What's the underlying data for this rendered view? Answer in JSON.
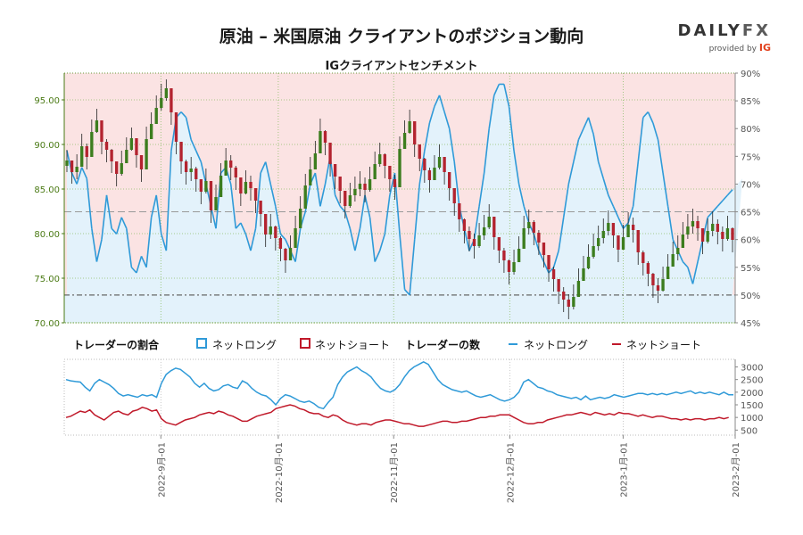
{
  "header": {
    "title": "原油 – 米国原油 クライアントのポジション動向",
    "subtitle": "IGクライアントセンチメント",
    "logo_word": "DAILY",
    "logo_word_fx": "FX",
    "logo_provided": "provided by",
    "logo_ig": "IG"
  },
  "legend": {
    "ratio_heading": "トレーダーの割合",
    "ratio_long": "ネットロング",
    "ratio_short": "ネットショート",
    "count_heading": "トレーダーの数",
    "count_long": "ネットロング",
    "count_short": "ネットショート"
  },
  "colors": {
    "long": "#2f9ad8",
    "short": "#c0192a",
    "long_fill": "#e3f2fb",
    "short_fill": "#fbe3e3",
    "bull": "#3c7d1e",
    "bear": "#b3232f",
    "price_axis": "#4a7a14"
  },
  "chart_data": [
    {
      "type": "line",
      "chart": "price-and-sentiment",
      "price_axis": {
        "ticks": [
          "70.00",
          "75.00",
          "80.00",
          "85.00",
          "90.00",
          "95.00"
        ],
        "ylim": [
          70,
          98
        ]
      },
      "sentiment_axis": {
        "ticks": [
          "45%",
          "50%",
          "55%",
          "60%",
          "65%",
          "70%",
          "75%",
          "80%",
          "85%",
          "90%"
        ],
        "ylim": [
          45,
          90
        ]
      },
      "price_close": [
        88.2,
        86.9,
        87.5,
        89.8,
        88.6,
        91.4,
        92.7,
        90.3,
        89.4,
        88.1,
        86.7,
        87.9,
        89.4,
        90.7,
        88.8,
        87.2,
        90.6,
        92.3,
        94.1,
        95.2,
        96.3,
        93.6,
        90.3,
        88.1,
        86.9,
        87.3,
        86.1,
        84.7,
        85.9,
        82.6,
        84.1,
        86.5,
        88.2,
        87.4,
        86.3,
        84.5,
        85.8,
        85.1,
        83.7,
        82.2,
        79.9,
        80.8,
        79.5,
        78.3,
        77.0,
        78.4,
        80.6,
        82.8,
        85.4,
        87.2,
        89.0,
        91.5,
        90.2,
        87.8,
        86.4,
        84.8,
        83.1,
        84.3,
        85.0,
        85.6,
        84.9,
        86.1,
        87.8,
        88.9,
        87.6,
        86.1,
        85.2,
        89.5,
        91.3,
        92.6,
        90.0,
        88.4,
        87.1,
        86.0,
        87.4,
        88.6,
        86.9,
        85.1,
        83.4,
        81.6,
        80.3,
        79.4,
        78.6,
        79.8,
        80.7,
        81.9,
        79.6,
        78.1,
        77.0,
        75.7,
        76.8,
        78.3,
        80.6,
        81.3,
        80.1,
        79.0,
        77.6,
        76.0,
        74.9,
        73.5,
        72.6,
        71.8,
        72.9,
        74.7,
        76.1,
        77.4,
        78.6,
        79.5,
        80.3,
        81.2,
        79.8,
        78.2,
        79.6,
        81.0,
        80.4,
        77.9,
        76.7,
        75.5,
        74.2,
        73.6,
        74.9,
        76.3,
        77.7,
        78.4,
        79.9,
        80.8,
        81.4,
        80.6,
        79.1,
        80.3,
        81.1,
        80.2,
        79.4,
        80.6,
        79.3
      ],
      "price_high": [
        89.4,
        88.2,
        88.9,
        91.2,
        90.1,
        92.8,
        94.0,
        91.8,
        90.6,
        89.5,
        88.0,
        89.3,
        90.8,
        91.9,
        90.2,
        88.6,
        92.0,
        93.6,
        95.5,
        96.8,
        97.3,
        95.0,
        91.7,
        89.4,
        88.3,
        88.6,
        87.5,
        86.1,
        87.3,
        84.0,
        85.5,
        87.9,
        89.6,
        88.8,
        87.6,
        85.9,
        87.1,
        86.5,
        85.1,
        83.6,
        81.3,
        82.2,
        80.9,
        79.7,
        78.4,
        79.8,
        82.0,
        84.2,
        86.7,
        88.6,
        90.4,
        92.9,
        91.6,
        89.2,
        87.8,
        86.2,
        84.5,
        85.7,
        86.4,
        87.0,
        86.3,
        87.5,
        89.2,
        90.2,
        89.0,
        87.5,
        86.6,
        90.9,
        92.7,
        93.9,
        91.4,
        89.8,
        88.5,
        87.4,
        88.8,
        90.0,
        88.3,
        86.5,
        84.8,
        83.0,
        81.7,
        80.8,
        80.0,
        81.2,
        82.1,
        83.3,
        81.0,
        79.5,
        78.4,
        77.1,
        78.2,
        79.7,
        82.0,
        82.7,
        81.5,
        80.4,
        79.0,
        77.4,
        76.3,
        74.9,
        74.0,
        73.2,
        74.3,
        76.1,
        77.5,
        78.8,
        80.0,
        80.9,
        81.7,
        82.6,
        81.2,
        79.6,
        81.0,
        82.4,
        81.8,
        79.3,
        78.1,
        76.9,
        75.6,
        75.0,
        76.3,
        77.7,
        79.1,
        79.8,
        81.3,
        82.2,
        82.8,
        82.0,
        80.5,
        81.7,
        82.5,
        81.6,
        80.8,
        82.0,
        80.7
      ],
      "price_low": [
        86.9,
        85.6,
        86.1,
        88.3,
        87.2,
        90.0,
        91.3,
        88.9,
        88.0,
        86.8,
        85.3,
        86.5,
        88.0,
        89.3,
        87.4,
        85.8,
        89.2,
        90.9,
        92.8,
        93.8,
        94.9,
        92.2,
        88.9,
        86.7,
        85.5,
        85.9,
        84.7,
        83.3,
        84.5,
        81.2,
        82.7,
        85.1,
        86.8,
        86.0,
        84.9,
        83.1,
        84.4,
        83.7,
        82.3,
        80.8,
        78.5,
        79.4,
        78.1,
        76.9,
        75.6,
        77.0,
        79.2,
        81.4,
        84.0,
        85.8,
        87.6,
        90.1,
        88.8,
        86.4,
        85.0,
        83.4,
        81.7,
        82.9,
        83.6,
        84.2,
        83.5,
        84.7,
        86.4,
        87.5,
        86.2,
        84.7,
        83.8,
        88.1,
        89.9,
        91.2,
        88.6,
        87.0,
        85.7,
        84.6,
        86.0,
        87.2,
        85.5,
        83.7,
        82.0,
        80.2,
        78.9,
        78.0,
        77.2,
        78.4,
        79.3,
        80.5,
        78.2,
        76.7,
        75.6,
        74.3,
        75.4,
        76.9,
        79.2,
        79.9,
        78.7,
        77.6,
        76.2,
        74.6,
        73.5,
        72.1,
        71.2,
        70.4,
        71.5,
        73.3,
        74.7,
        76.0,
        77.2,
        78.1,
        78.9,
        79.8,
        78.4,
        76.8,
        78.2,
        79.6,
        79.0,
        76.5,
        75.3,
        74.1,
        72.8,
        72.2,
        73.5,
        74.9,
        76.3,
        77.0,
        78.5,
        79.4,
        80.0,
        79.2,
        77.7,
        78.9,
        79.7,
        78.8,
        78.0,
        79.2,
        77.9
      ],
      "long_pct": [
        76,
        72,
        70,
        73,
        71,
        62,
        56,
        60,
        68,
        62,
        61,
        64,
        62,
        55,
        54,
        57,
        55,
        64,
        68,
        61,
        58,
        76,
        82,
        83,
        82,
        78,
        76,
        74,
        70,
        66,
        62,
        72,
        73,
        70,
        62,
        63,
        61,
        58,
        62,
        72,
        74,
        70,
        66,
        61,
        60,
        58,
        56,
        62,
        65,
        70,
        72,
        66,
        70,
        75,
        68,
        66,
        65,
        62,
        58,
        62,
        68,
        64,
        56,
        58,
        61,
        68,
        72,
        61,
        51,
        50,
        60,
        70,
        76,
        81,
        84,
        86,
        83,
        80,
        74,
        66,
        62,
        58,
        60,
        66,
        72,
        80,
        86,
        88,
        88,
        84,
        76,
        70,
        66,
        63,
        61,
        58,
        56,
        54,
        55,
        58,
        64,
        70,
        74,
        78,
        80,
        82,
        79,
        74,
        71,
        68,
        66,
        64,
        62,
        63,
        66,
        74,
        82,
        83,
        81,
        78,
        72,
        66,
        60,
        58,
        56,
        55,
        52,
        56,
        60,
        64,
        65,
        66,
        67,
        68,
        69,
        70,
        71
      ]
    },
    {
      "type": "line",
      "chart": "trader-counts",
      "y_ticks": [
        "500",
        "1000",
        "1500",
        "2000",
        "2500",
        "3000"
      ],
      "ylim": [
        300,
        3300
      ],
      "x_tick_labels": [
        "2022-9月-01",
        "2022-10月-01",
        "2022-11月-01",
        "2022-12月-01",
        "2023-1月-01",
        "2023-2月-01"
      ],
      "series": [
        {
          "name": "ネットロング",
          "values": [
            2500,
            2450,
            2420,
            2400,
            2200,
            2050,
            2350,
            2500,
            2400,
            2300,
            2150,
            1950,
            1850,
            1900,
            1850,
            1800,
            1900,
            1850,
            1900,
            1800,
            2350,
            2700,
            2850,
            2950,
            2900,
            2750,
            2600,
            2350,
            2200,
            2350,
            2150,
            2050,
            2100,
            2250,
            2300,
            2200,
            2150,
            2450,
            2350,
            2150,
            2000,
            1900,
            1850,
            1700,
            1500,
            1750,
            1900,
            1850,
            1750,
            1650,
            1600,
            1650,
            1550,
            1400,
            1350,
            1600,
            1800,
            2300,
            2600,
            2800,
            2900,
            3000,
            2850,
            2750,
            2600,
            2350,
            2150,
            2050,
            2000,
            2100,
            2300,
            2600,
            2850,
            3000,
            3100,
            3200,
            3100,
            2800,
            2500,
            2300,
            2200,
            2100,
            2050,
            2000,
            2050,
            1950,
            1850,
            1800,
            1850,
            1900,
            1800,
            1700,
            1650,
            1700,
            1800,
            2000,
            2400,
            2500,
            2350,
            2200,
            2150,
            2050,
            2000,
            1900,
            1850,
            1800,
            1750,
            1800,
            1700,
            1850,
            1700,
            1750,
            1800,
            1750,
            1800,
            1900,
            1850,
            1800,
            1850,
            1900,
            1950,
            1950,
            1900,
            1950,
            1900,
            1950,
            1900,
            1950,
            2000,
            1950,
            2000,
            2050,
            1950,
            2000,
            1950,
            2000,
            1950,
            1900,
            2000,
            1900,
            1900
          ]
        },
        {
          "name": "ネットショート",
          "values": [
            1000,
            1050,
            1150,
            1250,
            1200,
            1300,
            1100,
            1000,
            900,
            1050,
            1200,
            1250,
            1150,
            1100,
            1250,
            1300,
            1400,
            1350,
            1250,
            1300,
            950,
            800,
            750,
            700,
            800,
            900,
            950,
            1000,
            1100,
            1150,
            1200,
            1150,
            1250,
            1200,
            1100,
            1050,
            950,
            850,
            850,
            950,
            1050,
            1100,
            1150,
            1200,
            1350,
            1400,
            1450,
            1500,
            1450,
            1350,
            1300,
            1200,
            1150,
            1150,
            1050,
            1000,
            1100,
            1050,
            900,
            800,
            750,
            700,
            750,
            750,
            700,
            800,
            850,
            900,
            900,
            850,
            800,
            750,
            750,
            700,
            650,
            650,
            700,
            750,
            800,
            850,
            850,
            800,
            800,
            850,
            850,
            900,
            950,
            1000,
            1000,
            1050,
            1050,
            1100,
            1100,
            1100,
            1000,
            900,
            800,
            750,
            750,
            800,
            800,
            900,
            950,
            1000,
            1050,
            1100,
            1100,
            1150,
            1200,
            1150,
            1100,
            1200,
            1150,
            1100,
            1150,
            1100,
            1200,
            1150,
            1150,
            1100,
            1050,
            1100,
            1050,
            1000,
            1050,
            1050,
            1000,
            950,
            950,
            900,
            950,
            900,
            950,
            950,
            900,
            950,
            950,
            1000,
            950,
            1000
          ]
        }
      ]
    }
  ]
}
